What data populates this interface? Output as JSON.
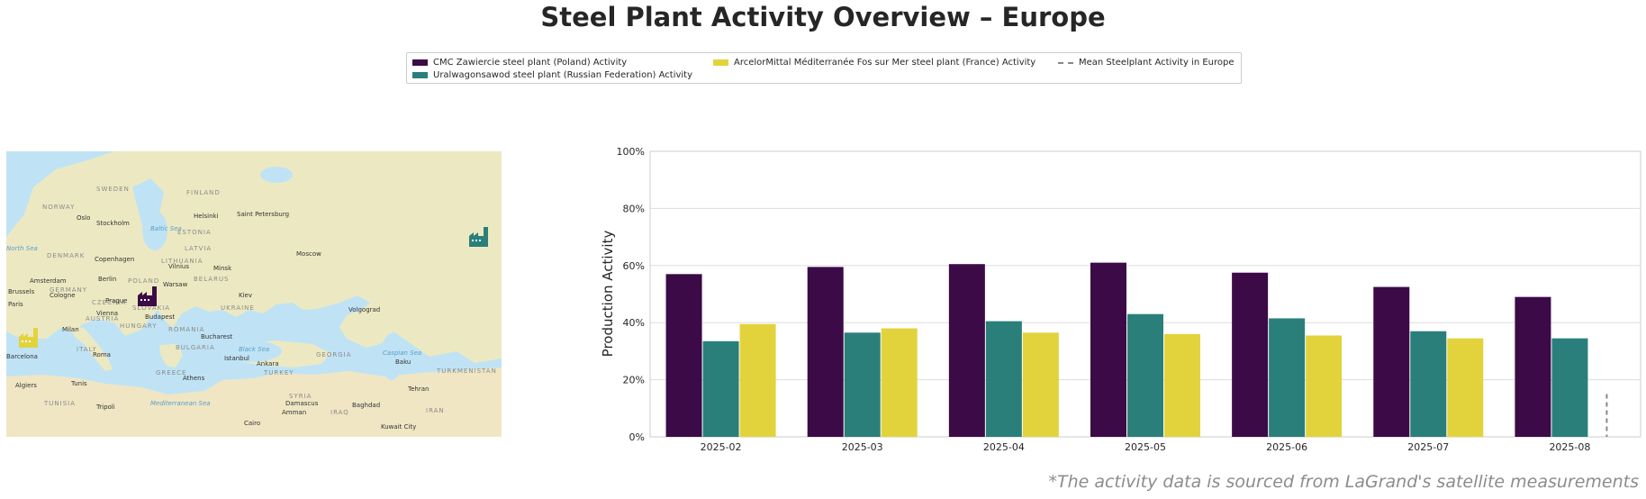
{
  "title": "Steel Plant Activity Overview – Europe",
  "legend": {
    "items": [
      {
        "label": "CMC Zawiercie steel plant (Poland) Activity",
        "color": "#3b0a47",
        "kind": "bar"
      },
      {
        "label": "Uralwagonsawod steel plant (Russian Federation) Activity",
        "color": "#2a7f7a",
        "kind": "bar"
      },
      {
        "label": "ArcelorMittal Méditerranée Fos sur Mer steel plant (France) Activity",
        "color": "#e2d33c",
        "kind": "bar"
      },
      {
        "label": "Mean Steelplant Activity in Europe",
        "color": "#888888",
        "kind": "dashed-line"
      }
    ]
  },
  "map": {
    "countries": [
      "NORWAY",
      "SWEDEN",
      "FINLAND",
      "ESTONIA",
      "LATVIA",
      "LITHUANIA",
      "DENMARK",
      "BELARUS",
      "POLAND",
      "GERMANY",
      "CZECHIA",
      "SLOVAKIA",
      "AUSTRIA",
      "HUNGARY",
      "UKRAINE",
      "ROMANIA",
      "BULGARIA",
      "ITALY",
      "GREECE",
      "TURKEY",
      "GEORGIA",
      "SYRIA",
      "IRAQ",
      "IRAN",
      "TUNISIA",
      "TURKMENISTAN"
    ],
    "cities": [
      "Oslo",
      "Stockholm",
      "Helsinki",
      "Saint Petersburg",
      "Copenhagen",
      "Vilnius",
      "Minsk",
      "Moscow",
      "Amsterdam",
      "Berlin",
      "Warsaw",
      "Brussels",
      "Cologne",
      "Paris",
      "Prague",
      "Vienna",
      "Budapest",
      "Kiev",
      "Volgograd",
      "Milan",
      "Bucharest",
      "Barcelona",
      "Roma",
      "Istanbul",
      "Ankara",
      "Baku",
      "Algiers",
      "Tunis",
      "Athens",
      "Tehran",
      "Tripoli",
      "Damascus",
      "Amman",
      "Baghdad",
      "Cairo",
      "Kuwait City"
    ],
    "seas": [
      "Baltic Sea",
      "North Sea",
      "Black Sea",
      "Caspian Sea",
      "Mediterranean Sea"
    ],
    "plants": [
      {
        "name": "CMC Zawiercie steel plant",
        "color": "#3b0a47",
        "icon": "factory-icon"
      },
      {
        "name": "Uralwagonsawod steel plant",
        "color": "#2a7f7a",
        "icon": "factory-icon"
      },
      {
        "name": "ArcelorMittal Méditerranée Fos sur Mer steel plant",
        "color": "#e2d33c",
        "icon": "factory-icon"
      }
    ]
  },
  "chart_data": {
    "type": "bar",
    "categories": [
      "2025-02",
      "2025-03",
      "2025-04",
      "2025-05",
      "2025-06",
      "2025-07",
      "2025-08"
    ],
    "series": [
      {
        "name": "CMC Zawiercie steel plant (Poland) Activity",
        "color": "#3b0a47",
        "values": [
          57,
          59.5,
          60.5,
          61,
          57.5,
          52.5,
          49
        ]
      },
      {
        "name": "Uralwagonsawod steel plant (Russian Federation) Activity",
        "color": "#2a7f7a",
        "values": [
          33.5,
          36.5,
          40.5,
          43,
          41.5,
          37,
          34.5
        ]
      },
      {
        "name": "ArcelorMittal Méditerranée Fos sur Mer steel plant (France) Activity",
        "color": "#e2d33c",
        "values": [
          39.5,
          38,
          36.5,
          36,
          35.5,
          34.5,
          null
        ]
      }
    ],
    "mean_series": {
      "name": "Mean Steelplant Activity in Europe",
      "color": "#888888",
      "style": "dashed",
      "values": [
        null,
        null,
        null,
        null,
        null,
        null,
        15
      ]
    },
    "ylabel": "Production Activity",
    "xlabel": "",
    "ylim": [
      0,
      100
    ],
    "yticks": [
      "0%",
      "20%",
      "40%",
      "60%",
      "80%",
      "100%"
    ],
    "grid": "horizontal",
    "legend_placement": "top-center"
  },
  "footer": "*The activity data is sourced from LaGrand's satellite measurements"
}
